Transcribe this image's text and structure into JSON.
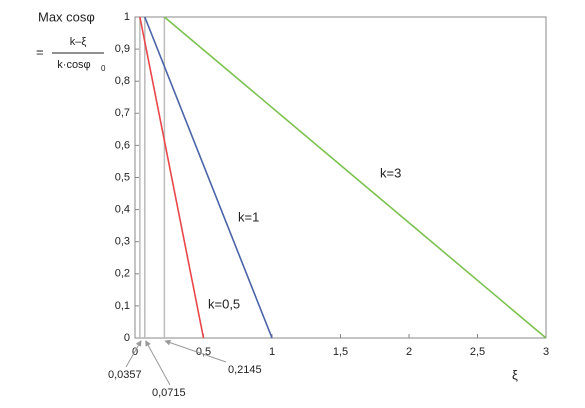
{
  "chart_data": {
    "type": "line",
    "ylabel": "Max cosφ",
    "formula_prefix": "=",
    "formula_numerator": "k–ξ",
    "formula_denominator": "k·cosφ",
    "formula_denominator_subscript": "0",
    "xlabel": "ξ",
    "xlim": [
      0,
      3
    ],
    "ylim": [
      0,
      1
    ],
    "xticks": [
      0,
      {
        "value": 0.5,
        "label": "0,5"
      },
      1,
      {
        "value": 1.5,
        "label": "1,5"
      },
      2,
      {
        "value": 2.5,
        "label": "2,5"
      },
      3
    ],
    "yticks": [
      0,
      {
        "value": 0.1,
        "label": "0,1"
      },
      {
        "value": 0.2,
        "label": "0,2"
      },
      {
        "value": 0.3,
        "label": "0,3"
      },
      {
        "value": 0.4,
        "label": "0,4"
      },
      {
        "value": 0.5,
        "label": "0,5"
      },
      {
        "value": 0.6,
        "label": "0,6"
      },
      {
        "value": 0.7,
        "label": "0,7"
      },
      {
        "value": 0.8,
        "label": "0,8"
      },
      {
        "value": 0.9,
        "label": "0,9"
      },
      1
    ],
    "grid": false,
    "series": [
      {
        "name": "k=0,5",
        "color": "#e8474a",
        "x": [
          0.0357,
          0.5
        ],
        "values": [
          1,
          0
        ]
      },
      {
        "name": "k=1",
        "color": "#4a64a8",
        "x": [
          0.0715,
          1
        ],
        "values": [
          1,
          0
        ]
      },
      {
        "name": "k=3",
        "color": "#7cc250",
        "x": [
          0.2145,
          3
        ],
        "values": [
          1,
          0
        ]
      }
    ],
    "annotations": [
      {
        "x": 0.0357,
        "label": "0,0357"
      },
      {
        "x": 0.0715,
        "label": "0,0715"
      },
      {
        "x": 0.2145,
        "label": "0,2145"
      }
    ]
  }
}
